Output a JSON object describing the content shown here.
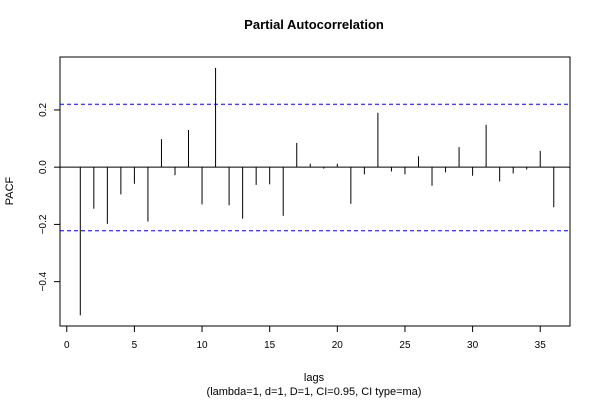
{
  "chart_data": {
    "type": "bar",
    "title": "Partial Autocorrelation",
    "xlabel": "lags",
    "subtitle": "(lambda=1, d=1, D=1, CI=0.95, CI type=ma)",
    "ylabel": "PACF",
    "xlim": [
      -0.5,
      37.2
    ],
    "ylim": [
      -0.555,
      0.385
    ],
    "x_ticks": [
      0,
      5,
      10,
      15,
      20,
      25,
      30,
      35
    ],
    "y_ticks": [
      -0.4,
      -0.2,
      0.0,
      0.2
    ],
    "y_tick_labels": [
      "−0.4",
      "−0.2",
      "0.0",
      "0.2"
    ],
    "confidence_bounds": [
      0.22,
      -0.222
    ],
    "confidence_color": "#0000ff",
    "zero_line": true,
    "grid": false,
    "lags": [
      1,
      2,
      3,
      4,
      5,
      6,
      7,
      8,
      9,
      10,
      11,
      12,
      13,
      14,
      15,
      16,
      17,
      18,
      19,
      20,
      21,
      22,
      23,
      24,
      25,
      26,
      27,
      28,
      29,
      30,
      31,
      32,
      33,
      34,
      35,
      36
    ],
    "values": [
      -0.518,
      -0.145,
      -0.198,
      -0.095,
      -0.058,
      -0.19,
      0.098,
      -0.028,
      0.13,
      -0.13,
      0.347,
      -0.133,
      -0.18,
      -0.062,
      -0.06,
      -0.17,
      0.085,
      0.012,
      -0.005,
      0.012,
      -0.128,
      -0.025,
      0.19,
      -0.015,
      -0.025,
      0.038,
      -0.065,
      -0.018,
      0.07,
      -0.03,
      0.148,
      -0.05,
      -0.022,
      -0.008,
      0.057,
      -0.14
    ]
  }
}
